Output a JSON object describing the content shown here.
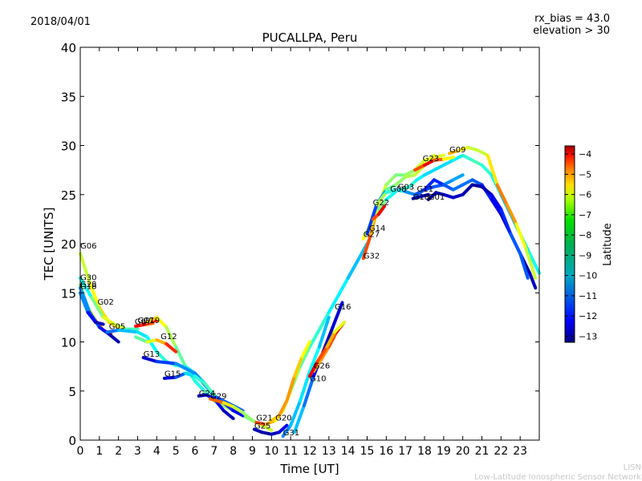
{
  "header": {
    "date": "2018/04/01",
    "rx_bias": "rx_bias = 43.0",
    "elevation": "elevation > 30"
  },
  "watermark": {
    "line1": "LISN",
    "line2": "Low-Latitude Ionospheric Sensor Network"
  },
  "colorbar": {
    "label": "Latitude",
    "min": -13.3,
    "max": -3.6,
    "ticks": [
      "-4",
      "-5",
      "-6",
      "-7",
      "-8",
      "-9",
      "-10",
      "-11",
      "-12",
      "-13"
    ],
    "tick_values": [
      -4,
      -5,
      -6,
      -7,
      -8,
      -9,
      -10,
      -11,
      -12,
      -13
    ],
    "colormap": "jet"
  },
  "chart_data": {
    "type": "line",
    "title": "PUCALLPA, Peru",
    "xlabel": "Time [UT]",
    "ylabel": "TEC [UNITS]",
    "xlim": [
      0,
      24
    ],
    "ylim": [
      0,
      40
    ],
    "xticks": [
      "0",
      "1",
      "2",
      "3",
      "4",
      "5",
      "6",
      "7",
      "8",
      "9",
      "10",
      "11",
      "12",
      "13",
      "14",
      "15",
      "16",
      "17",
      "18",
      "19",
      "20",
      "21",
      "22",
      "23"
    ],
    "yticks": [
      "0",
      "5",
      "10",
      "15",
      "20",
      "25",
      "30",
      "35",
      "40"
    ],
    "grid": false,
    "series": [
      {
        "name": "G06",
        "label_at": [
          0.0,
          19.5
        ],
        "x": [
          0.0,
          0.5,
          1.0,
          1.5,
          2.0
        ],
        "y": [
          19.0,
          16.0,
          13.5,
          12.0,
          11.5
        ],
        "lat": [
          -8.0,
          -7.5,
          -7.0,
          -6.8,
          -6.5
        ]
      },
      {
        "name": "G30",
        "label_at": [
          0.0,
          16.3
        ],
        "x": [
          0.0,
          0.4,
          0.8,
          1.2,
          1.6
        ],
        "y": [
          15.8,
          13.5,
          12.2,
          11.2,
          10.8
        ],
        "lat": [
          -9.0,
          -8.0,
          -6.5,
          -5.5,
          -4.3
        ]
      },
      {
        "name": "G28",
        "label_at": [
          0.0,
          15.6
        ],
        "x": [
          0.0,
          0.5,
          1.0,
          1.5,
          2.0
        ],
        "y": [
          15.5,
          13.0,
          11.5,
          10.8,
          10.0
        ],
        "lat": [
          -10.5,
          -11.0,
          -11.5,
          -12.5,
          -13.0
        ]
      },
      {
        "name": "G18",
        "label_at": [
          0.0,
          15.4
        ],
        "x": [
          0.0,
          0.4,
          0.8,
          1.2
        ],
        "y": [
          15.0,
          13.0,
          12.0,
          11.8
        ],
        "lat": [
          -10.0,
          -11.5,
          -12.5,
          -13.0
        ]
      },
      {
        "name": "G02",
        "label_at": [
          0.9,
          13.8
        ],
        "x": [
          0.0,
          0.6,
          1.2,
          1.8,
          2.4,
          3.0
        ],
        "y": [
          16.5,
          14.5,
          12.5,
          11.8,
          11.3,
          11.3
        ],
        "lat": [
          -10.0,
          -9.0,
          -8.0,
          -7.0,
          -8.5,
          -9.5
        ]
      },
      {
        "name": "G05",
        "label_at": [
          1.5,
          11.3
        ],
        "x": [
          1.4,
          2.0,
          3.0,
          3.5,
          4.0,
          4.5,
          5.0,
          5.5,
          6.0,
          6.5,
          7.0,
          8.0,
          8.5
        ],
        "y": [
          11.0,
          11.2,
          11.0,
          10.5,
          9.0,
          8.0,
          7.6,
          7.5,
          6.8,
          5.8,
          4.5,
          3.5,
          3.0
        ],
        "lat": [
          -11.5,
          -10.5,
          -10.0,
          -9.8,
          -9.5,
          -9.2,
          -9.0,
          -9.5,
          -10.0,
          -10.5,
          -11.0,
          -11.2,
          -11.0
        ]
      },
      {
        "name": "G07",
        "label_at": [
          2.85,
          11.8
        ],
        "x": [
          2.9,
          3.2,
          3.5,
          3.8
        ],
        "y": [
          11.6,
          11.7,
          11.8,
          11.9
        ],
        "lat": [
          -4.5,
          -5.0,
          -5.5,
          -6.0
        ]
      },
      {
        "name": "G17",
        "label_at": [
          3.0,
          11.9
        ],
        "x": [
          3.3,
          3.6,
          4.0
        ],
        "y": [
          11.8,
          12.0,
          12.2
        ],
        "lat": [
          -4.2,
          -4.5,
          -5.0
        ]
      },
      {
        "name": "G19",
        "label_at": [
          3.3,
          11.9
        ],
        "x": [
          3.5,
          4.0,
          4.5,
          5.0,
          5.5,
          6.0,
          6.5,
          7.0,
          7.5,
          8.0,
          8.5,
          9.0,
          9.5,
          10.0
        ],
        "y": [
          12.0,
          12.5,
          11.5,
          9.5,
          7.5,
          6.0,
          5.0,
          4.0,
          3.5,
          3.0,
          2.5,
          2.0,
          1.5,
          1.0
        ],
        "lat": [
          -6.5,
          -7.0,
          -7.5,
          -8.5,
          -9.0,
          -9.5,
          -9.3,
          -8.5,
          -8.0,
          -8.2,
          -8.5,
          -8.5,
          -8.0,
          -7.5
        ]
      },
      {
        "name": "G12",
        "label_at": [
          4.2,
          10.3
        ],
        "x": [
          2.9,
          3.5,
          4.0,
          4.5,
          5.0
        ],
        "y": [
          10.5,
          10.0,
          10.2,
          9.8,
          9.0
        ],
        "lat": [
          -9.5,
          -8.0,
          -7.0,
          -6.0,
          -4.3
        ]
      },
      {
        "name": "G13",
        "label_at": [
          3.3,
          8.5
        ],
        "x": [
          3.3,
          4.0,
          5.0,
          6.0,
          7.0,
          7.5,
          8.0,
          8.5
        ],
        "y": [
          8.4,
          8.0,
          7.8,
          6.8,
          4.5,
          3.8,
          3.0,
          2.5
        ],
        "lat": [
          -13.0,
          -12.0,
          -11.0,
          -10.5,
          -11.0,
          -11.5,
          -12.0,
          -12.5
        ]
      },
      {
        "name": "G15",
        "label_at": [
          4.4,
          6.5
        ],
        "x": [
          4.4,
          5.0,
          5.5,
          6.0,
          6.5,
          7.0
        ],
        "y": [
          6.3,
          6.4,
          6.8,
          6.5,
          5.8,
          4.6
        ],
        "lat": [
          -13.0,
          -12.0,
          -10.5,
          -9.5,
          -9.0,
          -9.0
        ]
      },
      {
        "name": "G24",
        "label_at": [
          6.2,
          4.5
        ],
        "x": [
          6.2,
          6.6,
          7.0,
          7.5,
          8.0
        ],
        "y": [
          4.5,
          4.6,
          4.2,
          3.0,
          2.2
        ],
        "lat": [
          -13.0,
          -12.5,
          -12.0,
          -12.5,
          -13.0
        ]
      },
      {
        "name": "G29",
        "label_at": [
          6.8,
          4.2
        ],
        "x": [
          6.8,
          7.5,
          8.0,
          8.5,
          9.0
        ],
        "y": [
          4.2,
          3.8,
          3.4,
          2.8,
          2.0
        ],
        "lat": [
          -5.0,
          -6.5,
          -7.5,
          -8.0,
          -8.5
        ]
      },
      {
        "name": "G21",
        "label_at": [
          9.2,
          2.0
        ],
        "x": [
          9.2,
          9.7,
          10.2,
          10.6,
          11.0,
          11.5,
          12.0,
          13.0,
          14.0,
          15.0
        ],
        "y": [
          1.8,
          1.6,
          2.0,
          3.0,
          5.0,
          7.5,
          9.5,
          13.0,
          16.5,
          20.0
        ],
        "lat": [
          -5.0,
          -6.0,
          -7.0,
          -7.5,
          -8.0,
          -8.5,
          -9.0,
          -9.5,
          -10.0,
          -10.5
        ]
      },
      {
        "name": "G20",
        "label_at": [
          10.2,
          2.0
        ],
        "x": [
          10.0,
          10.4,
          10.8,
          11.2,
          11.6,
          12.0
        ],
        "y": [
          2.0,
          2.5,
          4.0,
          6.5,
          8.5,
          10.0
        ],
        "lat": [
          -7.0,
          -6.5,
          -6.0,
          -6.5,
          -7.0,
          -7.5
        ]
      },
      {
        "name": "G25",
        "label_at": [
          9.1,
          1.2
        ],
        "x": [
          9.1,
          9.5,
          10.0,
          10.4,
          10.8
        ],
        "y": [
          1.1,
          0.8,
          0.6,
          0.8,
          1.5
        ],
        "lat": [
          -12.5,
          -13.0,
          -13.0,
          -12.5,
          -12.0
        ]
      },
      {
        "name": "G31",
        "label_at": [
          10.6,
          0.5
        ],
        "x": [
          10.6,
          11.0,
          11.5,
          12.0,
          12.5,
          13.0
        ],
        "y": [
          0.4,
          1.5,
          4.0,
          7.0,
          9.5,
          12.5
        ],
        "lat": [
          -11.0,
          -10.5,
          -10.0,
          -9.8,
          -9.5,
          -11.0
        ]
      },
      {
        "name": "G16",
        "label_at": [
          13.3,
          13.3
        ],
        "x": [
          11.2,
          11.7,
          12.2,
          12.7,
          13.2,
          13.7
        ],
        "y": [
          0.8,
          3.5,
          6.5,
          9.0,
          11.5,
          14.0
        ],
        "lat": [
          -10.0,
          -10.5,
          -11.5,
          -12.5,
          -13.0,
          -12.0
        ]
      },
      {
        "name": "G26",
        "label_at": [
          12.2,
          7.3
        ],
        "x": [
          12.2,
          12.6,
          13.0,
          13.4,
          13.8
        ],
        "y": [
          7.0,
          8.2,
          9.5,
          11.0,
          12.0
        ],
        "lat": [
          -6.5,
          -6.5,
          -6.0,
          -5.0,
          -4.0
        ]
      },
      {
        "name": "G10",
        "label_at": [
          12.0,
          6.0
        ],
        "x": [
          12.0,
          12.4,
          12.9,
          13.3,
          13.8
        ],
        "y": [
          6.5,
          8.0,
          9.5,
          11.0,
          12.0
        ],
        "lat": [
          -4.2,
          -5.0,
          -6.0,
          -7.0,
          -8.0
        ]
      },
      {
        "name": "G32",
        "label_at": [
          14.8,
          18.5
        ],
        "x": [
          14.8,
          15.2,
          15.6,
          16.0,
          16.5,
          17.0,
          17.5,
          18.0,
          18.5,
          19.0
        ],
        "y": [
          18.5,
          21.0,
          24.0,
          26.0,
          27.0,
          27.0,
          27.5,
          28.5,
          28.8,
          29.0
        ],
        "lat": [
          -5.0,
          -6.0,
          -7.0,
          -8.0,
          -8.5,
          -8.5,
          -8.0,
          -7.5,
          -7.5,
          -7.5
        ]
      },
      {
        "name": "G27",
        "label_at": [
          14.8,
          20.7
        ],
        "x": [
          14.8,
          15.2,
          15.6,
          16.0,
          16.5
        ],
        "y": [
          20.5,
          22.0,
          23.5,
          24.5,
          25.3
        ],
        "lat": [
          -7.0,
          -7.5,
          -8.0,
          -9.0,
          -10.0
        ]
      },
      {
        "name": "G14",
        "label_at": [
          15.1,
          21.3
        ],
        "x": [
          15.0,
          15.5,
          16.0,
          16.5,
          17.0,
          17.5,
          18.0,
          18.5
        ],
        "y": [
          21.0,
          24.0,
          25.5,
          26.0,
          26.8,
          27.0,
          28.0,
          29.0
        ],
        "lat": [
          -11.0,
          -12.0,
          -9.0,
          -8.5,
          -8.0,
          -8.0,
          -7.5,
          -7.5
        ]
      },
      {
        "name": "G22",
        "label_at": [
          15.3,
          23.9
        ],
        "x": [
          15.3,
          15.6,
          15.9
        ],
        "y": [
          22.5,
          23.0,
          23.8
        ],
        "lat": [
          -6.0,
          -5.0,
          -4.3
        ]
      },
      {
        "name": "G08",
        "label_at": [
          16.2,
          25.3
        ],
        "x": [
          15.5,
          16.0,
          16.5,
          17.0,
          17.5,
          18.0,
          18.5,
          19.0,
          19.5,
          20.0
        ],
        "y": [
          24.0,
          25.2,
          25.5,
          25.3,
          25.0,
          25.5,
          25.8,
          26.0,
          26.5,
          27.0
        ],
        "lat": [
          -7.0,
          -9.0,
          -9.5,
          -10.5,
          -11.0,
          -11.5,
          -11.5,
          -11.0,
          -10.5,
          -10.5
        ]
      },
      {
        "name": "G03",
        "label_at": [
          16.6,
          25.5
        ],
        "x": [
          16.8,
          17.2,
          17.6,
          18.0,
          18.5,
          19.0,
          19.5,
          20.0,
          20.5,
          21.0,
          21.5,
          22.0,
          22.5,
          23.0,
          23.5,
          24.0
        ],
        "y": [
          25.5,
          25.8,
          26.5,
          27.0,
          27.5,
          28.0,
          28.5,
          29.0,
          28.5,
          28.0,
          27.0,
          25.0,
          23.0,
          21.0,
          19.0,
          17.0
        ],
        "lat": [
          -9.5,
          -9.0,
          -9.5,
          -10.0,
          -10.0,
          -10.0,
          -10.0,
          -9.5,
          -9.0,
          -9.0,
          -9.5,
          -10.0,
          -10.5,
          -10.0,
          -9.5,
          -9.5
        ]
      },
      {
        "name": "G23",
        "label_at": [
          17.9,
          28.4
        ],
        "x": [
          17.5,
          18.0,
          18.5,
          19.0,
          19.5
        ],
        "y": [
          27.5,
          28.0,
          28.5,
          28.6,
          28.8
        ],
        "lat": [
          -6.0,
          -5.0,
          -4.3,
          -7.0,
          -7.5
        ]
      },
      {
        "name": "G09",
        "label_at": [
          19.3,
          29.3
        ],
        "x": [
          19.3,
          19.8,
          20.3,
          20.8,
          21.3,
          21.8,
          22.3,
          22.8,
          23.3,
          23.8
        ],
        "y": [
          29.2,
          29.5,
          29.8,
          29.5,
          29.0,
          26.0,
          24.0,
          22.0,
          19.5,
          16.5
        ],
        "lat": [
          -6.0,
          -7.0,
          -7.5,
          -8.0,
          -7.5,
          -6.5,
          -5.5,
          -7.0,
          -7.5,
          -8.0
        ]
      },
      {
        "name": "G11",
        "label_at": [
          17.6,
          25.3
        ],
        "x": [
          17.6,
          18.0,
          18.5,
          19.0,
          19.5,
          20.0,
          20.5,
          21.0,
          21.5,
          22.0,
          22.5,
          23.0,
          23.5,
          23.8
        ],
        "y": [
          25.0,
          25.5,
          26.5,
          26.0,
          25.5,
          26.0,
          26.5,
          26.0,
          24.5,
          23.0,
          21.0,
          19.0,
          17.0,
          15.5
        ],
        "lat": [
          -11.0,
          -11.5,
          -12.0,
          -11.5,
          -11.0,
          -11.0,
          -11.0,
          -11.5,
          -12.0,
          -12.5,
          -13.0,
          -13.0,
          -13.0,
          -12.5
        ]
      },
      {
        "name": "G18",
        "label_at": [
          17.4,
          24.5
        ],
        "x": [
          17.4,
          17.8,
          18.2
        ],
        "y": [
          24.6,
          24.8,
          25.0
        ],
        "lat": [
          -13.0,
          -12.8,
          -12.5
        ]
      },
      {
        "name": "G01",
        "label_at": [
          18.2,
          24.5
        ],
        "x": [
          18.2,
          18.6,
          19.0,
          19.5,
          20.0,
          20.5,
          21.0,
          21.5,
          22.0,
          22.5,
          23.0,
          23.4
        ],
        "y": [
          24.5,
          25.2,
          25.0,
          24.7,
          25.0,
          26.0,
          25.8,
          25.0,
          23.5,
          21.0,
          19.0,
          16.5
        ],
        "lat": [
          -13.0,
          -13.0,
          -12.8,
          -12.5,
          -12.8,
          -13.0,
          -13.0,
          -12.5,
          -12.0,
          -11.5,
          -11.0,
          -11.5
        ]
      }
    ]
  }
}
